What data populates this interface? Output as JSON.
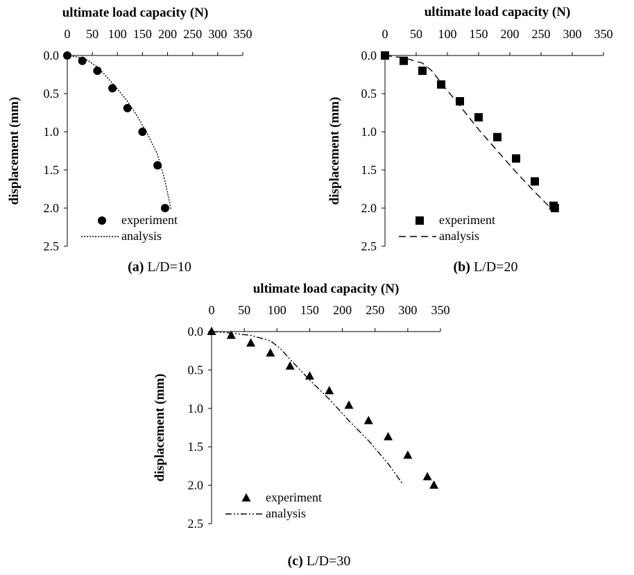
{
  "chart_data": [
    {
      "type": "scatter",
      "caption_letter": "(a)",
      "caption_text": " L/D=10",
      "title": "ultimate load capacity (N)",
      "xlabel": "ultimate load capacity (N)",
      "ylabel": "displacement (mm)",
      "xlim": [
        0,
        350
      ],
      "ylim": [
        0,
        2.5
      ],
      "y_inverted": true,
      "x_axis_position": "top",
      "x_ticks": [
        "0",
        "50",
        "100",
        "150",
        "200",
        "250",
        "300",
        "350"
      ],
      "y_ticks": [
        "0.0",
        "0.5",
        "1.0",
        "1.5",
        "2.0",
        "2.5"
      ],
      "legend_position": "bottom-left",
      "series": [
        {
          "name": "experiment",
          "marker": "circle",
          "points": [
            [
              0,
              0.0
            ],
            [
              30,
              0.07
            ],
            [
              60,
              0.2
            ],
            [
              90,
              0.43
            ],
            [
              120,
              0.69
            ],
            [
              150,
              1.0
            ],
            [
              180,
              1.44
            ],
            [
              195,
              2.0
            ]
          ]
        },
        {
          "name": "analysis",
          "line_style": "dotted",
          "points": [
            [
              0,
              0.0
            ],
            [
              20,
              0.02
            ],
            [
              40,
              0.06
            ],
            [
              60,
              0.15
            ],
            [
              80,
              0.29
            ],
            [
              100,
              0.44
            ],
            [
              120,
              0.6
            ],
            [
              140,
              0.8
            ],
            [
              160,
              1.03
            ],
            [
              180,
              1.3
            ],
            [
              195,
              1.65
            ],
            [
              207,
              2.02
            ]
          ]
        }
      ]
    },
    {
      "type": "scatter",
      "caption_letter": "(b)",
      "caption_text": " L/D=20",
      "title": "ultimate load capacity (N)",
      "xlabel": "ultimate load capacity (N)",
      "ylabel": "displacement (mm)",
      "xlim": [
        0,
        350
      ],
      "ylim": [
        0,
        2.5
      ],
      "y_inverted": true,
      "x_axis_position": "top",
      "x_ticks": [
        "0",
        "50",
        "100",
        "150",
        "200",
        "250",
        "300",
        "350"
      ],
      "y_ticks": [
        "0.0",
        "0.5",
        "1.0",
        "1.5",
        "2.0",
        "2.5"
      ],
      "legend_position": "bottom-left",
      "series": [
        {
          "name": "experiment",
          "marker": "square",
          "points": [
            [
              0,
              0.0
            ],
            [
              30,
              0.07
            ],
            [
              60,
              0.2
            ],
            [
              90,
              0.38
            ],
            [
              120,
              0.6
            ],
            [
              150,
              0.81
            ],
            [
              180,
              1.07
            ],
            [
              210,
              1.35
            ],
            [
              240,
              1.65
            ],
            [
              270,
              1.97
            ],
            [
              272,
              2.0
            ]
          ]
        },
        {
          "name": "analysis",
          "line_style": "dashed",
          "points": [
            [
              0,
              0.0
            ],
            [
              30,
              0.03
            ],
            [
              60,
              0.1
            ],
            [
              75,
              0.2
            ],
            [
              90,
              0.36
            ],
            [
              120,
              0.66
            ],
            [
              150,
              0.97
            ],
            [
              180,
              1.25
            ],
            [
              210,
              1.53
            ],
            [
              240,
              1.79
            ],
            [
              268,
              2.02
            ]
          ]
        }
      ]
    },
    {
      "type": "scatter",
      "caption_letter": "(c)",
      "caption_text": " L/D=30",
      "title": "ultimate load capacity (N)",
      "xlabel": "ultimate load capacity (N)",
      "ylabel": "displacement (mm)",
      "xlim": [
        0,
        350
      ],
      "ylim": [
        0,
        2.5
      ],
      "y_inverted": true,
      "x_axis_position": "top",
      "x_ticks": [
        "0",
        "50",
        "100",
        "150",
        "200",
        "250",
        "300",
        "350"
      ],
      "y_ticks": [
        "0.0",
        "0.5",
        "1.0",
        "1.5",
        "2.0",
        "2.5"
      ],
      "legend_position": "bottom-left",
      "series": [
        {
          "name": "experiment",
          "marker": "triangle",
          "points": [
            [
              0,
              0.0
            ],
            [
              30,
              0.05
            ],
            [
              60,
              0.15
            ],
            [
              90,
              0.28
            ],
            [
              120,
              0.45
            ],
            [
              150,
              0.58
            ],
            [
              180,
              0.77
            ],
            [
              210,
              0.96
            ],
            [
              240,
              1.16
            ],
            [
              270,
              1.37
            ],
            [
              300,
              1.61
            ],
            [
              330,
              1.89
            ],
            [
              340,
              2.0
            ]
          ]
        },
        {
          "name": "analysis",
          "line_style": "dash-dot-dot",
          "points": [
            [
              0,
              0.0
            ],
            [
              30,
              0.02
            ],
            [
              60,
              0.05
            ],
            [
              90,
              0.12
            ],
            [
              105,
              0.22
            ],
            [
              120,
              0.36
            ],
            [
              150,
              0.63
            ],
            [
              180,
              0.88
            ],
            [
              210,
              1.16
            ],
            [
              240,
              1.42
            ],
            [
              270,
              1.72
            ],
            [
              292,
              1.98
            ]
          ]
        }
      ]
    }
  ]
}
